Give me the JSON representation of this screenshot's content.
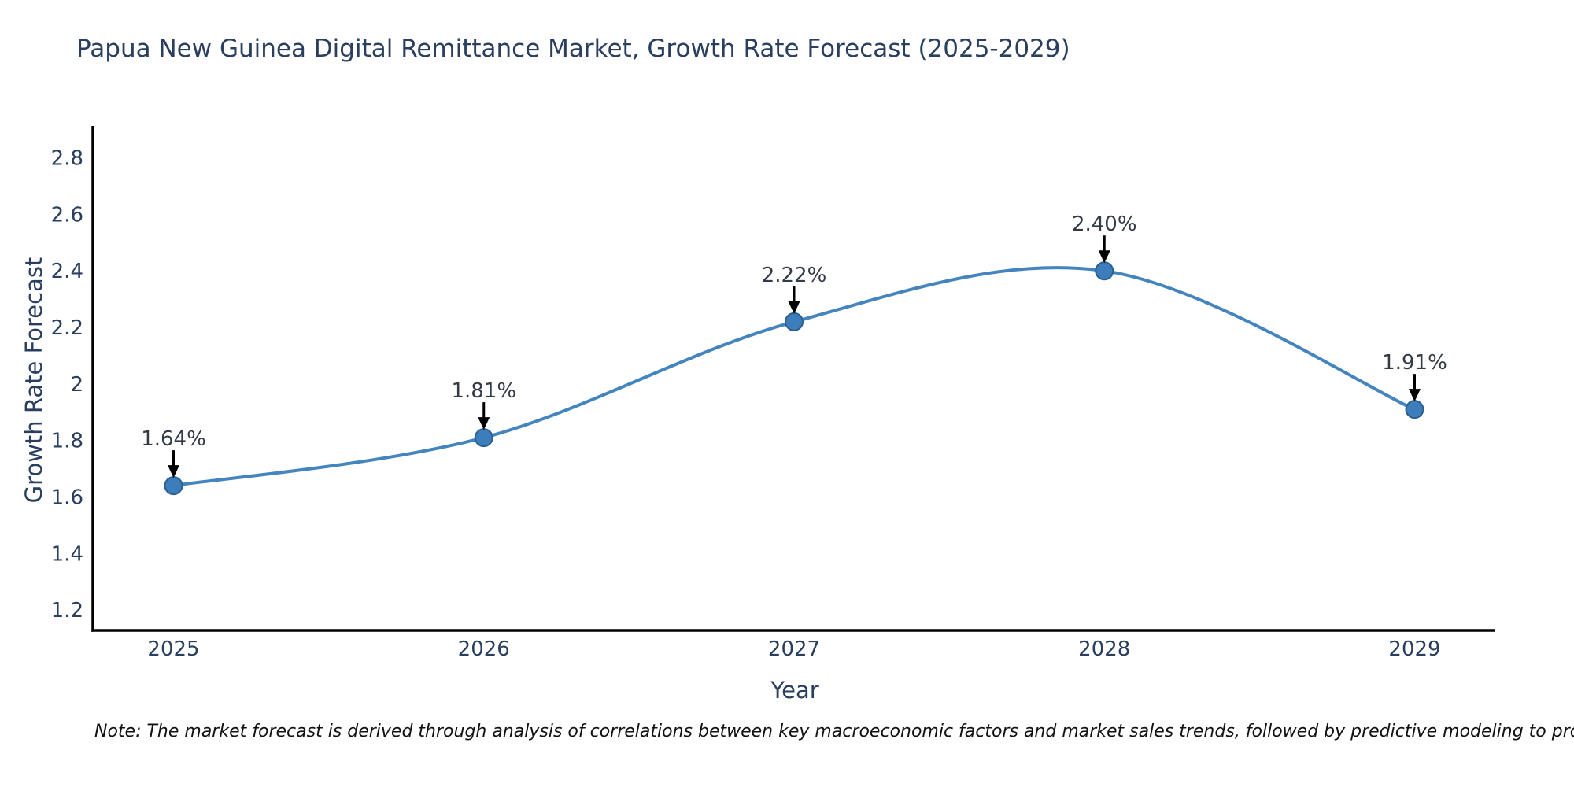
{
  "note": "Note: The market forecast is derived through analysis of correlations between key macroeconomic factors and market sales trends, followed by predictive modeling to project future sales",
  "chart_data": {
    "type": "line",
    "title": "Papua New Guinea Digital Remittance Market, Growth Rate Forecast (2025-2029)",
    "xlabel": "Year",
    "ylabel": "Growth Rate Forecast",
    "x": [
      2025,
      2026,
      2027,
      2028,
      2029
    ],
    "values": [
      1.64,
      1.81,
      2.22,
      2.4,
      1.91
    ],
    "point_labels": [
      "1.64%",
      "1.81%",
      "2.22%",
      "2.40%",
      "1.91%"
    ],
    "xticks": [
      "2025",
      "2026",
      "2027",
      "2028",
      "2029"
    ],
    "ytick_values": [
      1.2,
      1.4,
      1.6,
      1.8,
      2,
      2.2,
      2.4,
      2.6,
      2.8
    ],
    "ytick_labels": [
      "1.2",
      "1.4",
      "1.6",
      "1.8",
      "2",
      "2.2",
      "2.4",
      "2.6",
      "2.8"
    ],
    "xlim": [
      2024.74,
      2029.26
    ],
    "ylim": [
      1.128,
      2.913
    ],
    "line_shape": "spline",
    "grid": false,
    "legend": false,
    "colors": {
      "line": "#4485bf",
      "marker": "#3d7dbc",
      "marker_edge": "#2a608f",
      "axis": "#000000",
      "text": "#2a3f5f",
      "annotation": "#333b47",
      "arrow": "#000000",
      "background": "#ffffff"
    }
  }
}
